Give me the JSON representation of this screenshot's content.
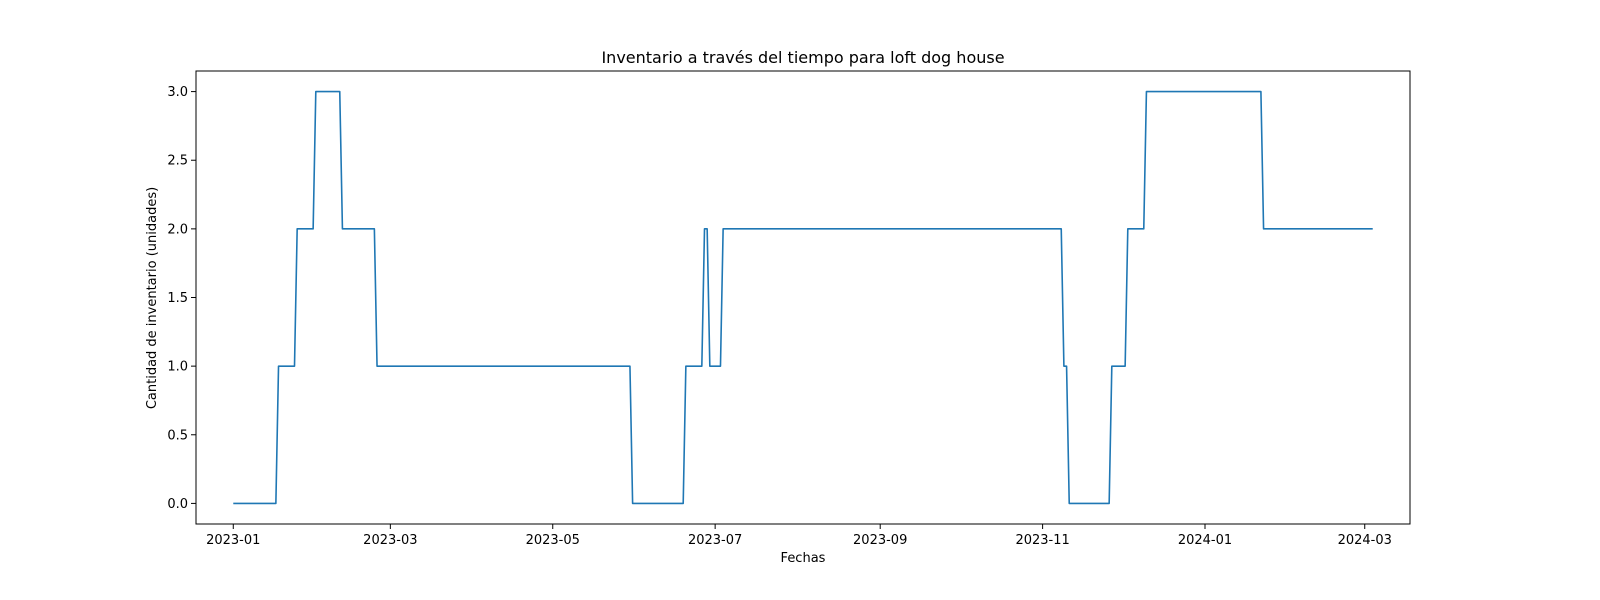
{
  "chart_data": {
    "type": "line",
    "title": "Inventario a través del tiempo para loft dog house",
    "xlabel": "Fechas",
    "ylabel": "Cantidad de inventario (unidades)",
    "x_ticks": [
      "2023-01",
      "2023-03",
      "2023-05",
      "2023-07",
      "2023-09",
      "2023-11",
      "2024-01",
      "2024-03"
    ],
    "y_ticks": [
      "0.0",
      "0.5",
      "1.0",
      "1.5",
      "2.0",
      "2.5",
      "3.0"
    ],
    "xlim": [
      "2022-12-18",
      "2024-03-18"
    ],
    "ylim": [
      -0.15,
      3.15
    ],
    "grid": false,
    "series": [
      {
        "color": "#1f77b4",
        "points": [
          [
            "2023-01-01",
            0
          ],
          [
            "2023-01-17",
            0
          ],
          [
            "2023-01-18",
            1
          ],
          [
            "2023-01-24",
            1
          ],
          [
            "2023-01-25",
            2
          ],
          [
            "2023-01-31",
            2
          ],
          [
            "2023-02-01",
            3
          ],
          [
            "2023-02-10",
            3
          ],
          [
            "2023-02-11",
            2
          ],
          [
            "2023-02-23",
            2
          ],
          [
            "2023-02-24",
            1
          ],
          [
            "2023-05-30",
            1
          ],
          [
            "2023-05-31",
            0
          ],
          [
            "2023-06-19",
            0
          ],
          [
            "2023-06-20",
            1
          ],
          [
            "2023-06-26",
            1
          ],
          [
            "2023-06-27",
            2
          ],
          [
            "2023-06-28",
            2
          ],
          [
            "2023-06-29",
            1
          ],
          [
            "2023-07-03",
            1
          ],
          [
            "2023-07-04",
            2
          ],
          [
            "2023-11-08",
            2
          ],
          [
            "2023-11-09",
            1
          ],
          [
            "2023-11-10",
            1
          ],
          [
            "2023-11-11",
            0
          ],
          [
            "2023-11-26",
            0
          ],
          [
            "2023-11-27",
            1
          ],
          [
            "2023-12-02",
            1
          ],
          [
            "2023-12-03",
            2
          ],
          [
            "2023-12-09",
            2
          ],
          [
            "2023-12-10",
            3
          ],
          [
            "2024-01-22",
            3
          ],
          [
            "2024-01-23",
            2
          ],
          [
            "2024-03-04",
            2
          ]
        ]
      }
    ]
  }
}
